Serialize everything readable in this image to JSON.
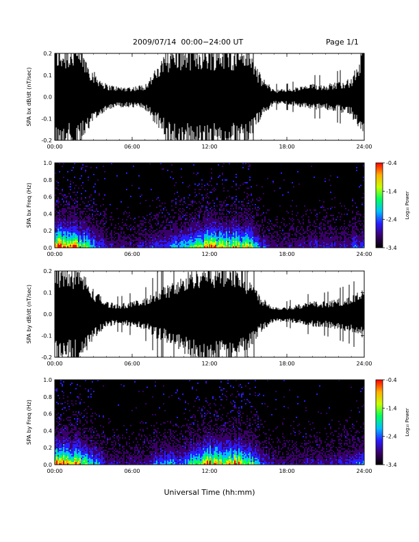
{
  "header": {
    "title": "2009/07/14  00:00−24:00 UT",
    "page": "Page 1/1"
  },
  "chart_data": [
    {
      "type": "line",
      "ylabel": "SPA bx dB/dt (nT/sec)",
      "xlabel": "",
      "xlim": [
        "00:00",
        "24:00"
      ],
      "ylim": [
        -0.2,
        0.2
      ],
      "x_ticks": [
        "00:00",
        "06:00",
        "12:00",
        "18:00",
        "24:00"
      ],
      "y_ticks": [
        "-0.2",
        "-0.1",
        "0.0",
        "0.1",
        "0.2"
      ],
      "series": [
        {
          "x_hours": [
            0,
            1,
            2,
            3,
            4,
            5,
            6,
            7,
            8,
            9,
            10,
            11,
            12,
            13,
            14,
            15,
            16,
            17,
            18,
            19,
            20,
            21,
            22,
            23,
            24
          ],
          "amplitude": [
            0.2,
            0.2,
            0.2,
            0.1,
            0.05,
            0.04,
            0.04,
            0.05,
            0.12,
            0.2,
            0.2,
            0.2,
            0.2,
            0.2,
            0.2,
            0.2,
            0.08,
            0.03,
            0.03,
            0.04,
            0.05,
            0.05,
            0.06,
            0.07,
            0.2
          ]
        }
      ],
      "grid": false
    },
    {
      "type": "heatmap",
      "ylabel": "SPA bx Freq (Hz)",
      "xlabel": "",
      "xlim": [
        "00:00",
        "24:00"
      ],
      "ylim": [
        0.0,
        1.0
      ],
      "x_ticks": [
        "00:00",
        "06:00",
        "12:00",
        "18:00",
        "24:00"
      ],
      "y_ticks": [
        "0.0",
        "0.2",
        "0.4",
        "0.6",
        "0.8",
        "1.0"
      ],
      "colorbar": {
        "label": "Log₁₀ Power",
        "ticks": [
          "-0.4",
          "-1.4",
          "-2.4",
          "-3.4"
        ],
        "range": [
          -3.4,
          -0.4
        ]
      },
      "activity_hours": [
        0,
        1,
        2,
        3,
        4,
        5,
        6,
        7,
        8,
        9,
        10,
        11,
        12,
        13,
        14,
        15,
        16,
        17,
        18,
        19,
        20,
        21,
        22,
        23,
        24
      ],
      "activity_level": [
        0.9,
        0.8,
        0.7,
        0.4,
        0.2,
        0.15,
        0.15,
        0.2,
        0.3,
        0.35,
        0.4,
        0.6,
        0.8,
        0.7,
        0.75,
        0.6,
        0.3,
        0.15,
        0.15,
        0.15,
        0.2,
        0.2,
        0.2,
        0.25,
        0.3
      ]
    },
    {
      "type": "line",
      "ylabel": "SPA by dB/dt (nT/sec)",
      "xlabel": "",
      "xlim": [
        "00:00",
        "24:00"
      ],
      "ylim": [
        -0.2,
        0.2
      ],
      "x_ticks": [
        "00:00",
        "06:00",
        "12:00",
        "18:00",
        "24:00"
      ],
      "y_ticks": [
        "-0.2",
        "-0.1",
        "0.0",
        "0.1",
        "0.2"
      ],
      "series": [
        {
          "x_hours": [
            0,
            1,
            2,
            3,
            4,
            5,
            6,
            7,
            8,
            9,
            10,
            11,
            12,
            13,
            14,
            15,
            16,
            17,
            18,
            19,
            20,
            21,
            22,
            23,
            24
          ],
          "amplitude": [
            0.2,
            0.2,
            0.18,
            0.1,
            0.05,
            0.04,
            0.05,
            0.06,
            0.1,
            0.12,
            0.15,
            0.2,
            0.2,
            0.2,
            0.2,
            0.15,
            0.07,
            0.03,
            0.03,
            0.04,
            0.05,
            0.05,
            0.06,
            0.07,
            0.1
          ]
        }
      ],
      "grid": false
    },
    {
      "type": "heatmap",
      "ylabel": "SPA by Freq (Hz)",
      "xlabel": "Universal Time (hh:mm)",
      "xlim": [
        "00:00",
        "24:00"
      ],
      "ylim": [
        0.0,
        1.0
      ],
      "x_ticks": [
        "00:00",
        "06:00",
        "12:00",
        "18:00",
        "24:00"
      ],
      "y_ticks": [
        "0.0",
        "0.2",
        "0.4",
        "0.6",
        "0.8",
        "1.0"
      ],
      "colorbar": {
        "label": "Log₁₀ Power",
        "ticks": [
          "-0.4",
          "-1.4",
          "-2.4",
          "-3.4"
        ],
        "range": [
          -3.4,
          -0.4
        ]
      },
      "activity_hours": [
        0,
        1,
        2,
        3,
        4,
        5,
        6,
        7,
        8,
        9,
        10,
        11,
        12,
        13,
        14,
        15,
        16,
        17,
        18,
        19,
        20,
        21,
        22,
        23,
        24
      ],
      "activity_level": [
        0.9,
        0.8,
        0.7,
        0.4,
        0.2,
        0.15,
        0.15,
        0.2,
        0.3,
        0.35,
        0.4,
        0.6,
        0.85,
        0.7,
        0.8,
        0.65,
        0.3,
        0.15,
        0.15,
        0.15,
        0.2,
        0.2,
        0.2,
        0.25,
        0.3
      ]
    }
  ],
  "colors": {
    "background": "#ffffff",
    "trace": "#000000",
    "spectrogram_background": "#000000",
    "colorbar_stops": [
      "#000000",
      "#3a006a",
      "#2a1cff",
      "#00c0ff",
      "#00ff60",
      "#c8ff00",
      "#ffb000",
      "#ff0000"
    ]
  }
}
